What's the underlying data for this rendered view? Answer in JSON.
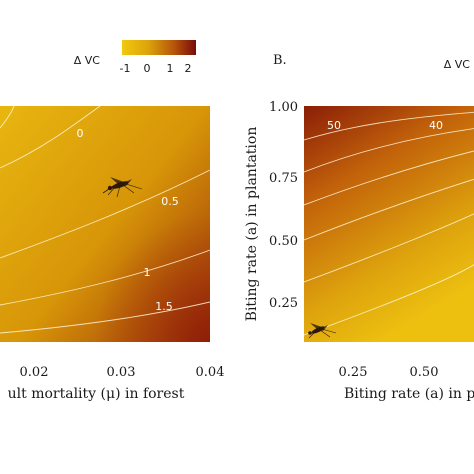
{
  "legend": {
    "title": "Δ VC",
    "ticks": [
      "-1",
      "0",
      "1",
      "2"
    ],
    "colors": [
      "#f1c40a",
      "#d49a0a",
      "#a8400a",
      "#7a0a0a"
    ]
  },
  "chart_data": [
    {
      "type": "heatmap",
      "panel_label": "",
      "xlabel": "ult mortality (μ) in forest",
      "ylabel": "",
      "x_ticks": [
        "0.02",
        "0.03",
        "0.04"
      ],
      "y_ticks": [],
      "contours": [
        {
          "level": "0"
        },
        {
          "level": "0.5"
        },
        {
          "level": "1"
        },
        {
          "level": "1.5"
        }
      ]
    },
    {
      "type": "heatmap",
      "panel_label": "B.",
      "legend_title": "Δ VC",
      "xlabel": "Biting rate (a) in p",
      "ylabel": "Biting rate (a) in plantation",
      "x_ticks": [
        "0.25",
        "0.50"
      ],
      "y_ticks": [
        "1.00",
        "0.75",
        "0.50",
        "0.25"
      ],
      "contours": [
        {
          "level": "50"
        },
        {
          "level": "40"
        }
      ]
    }
  ]
}
